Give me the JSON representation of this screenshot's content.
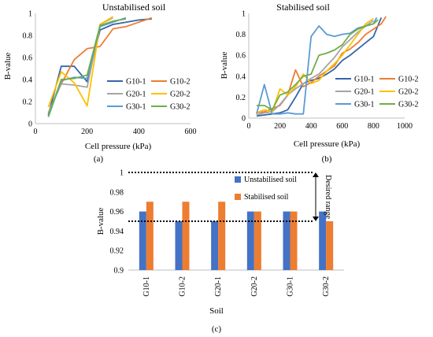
{
  "chart_data": [
    {
      "id": "a",
      "type": "line",
      "title": "Unstabilised soil",
      "xlabel": "Cell pressure (kPa)",
      "ylabel": "B-value",
      "caption": "(a)",
      "xlim": [
        0,
        600
      ],
      "ylim": [
        0,
        1
      ],
      "xticks": [
        "0",
        "200",
        "400",
        "600"
      ],
      "yticks": [
        "0",
        "0.2",
        "0.4",
        "0.6",
        "0.8",
        "1"
      ],
      "legend_position": "bottom-right",
      "grid": false,
      "series": [
        {
          "name": "G10-1",
          "color": "#3565a8",
          "x": [
            50,
            100,
            150,
            200,
            250,
            300,
            350,
            400,
            450
          ],
          "y": [
            0.08,
            0.52,
            0.52,
            0.38,
            0.85,
            0.9,
            0.92,
            0.94,
            0.95
          ]
        },
        {
          "name": "G10-2",
          "color": "#ed7d31",
          "x": [
            50,
            100,
            150,
            200,
            250,
            300,
            350,
            400,
            450
          ],
          "y": [
            0.1,
            0.36,
            0.58,
            0.68,
            0.7,
            0.86,
            0.88,
            0.92,
            0.96
          ]
        },
        {
          "name": "G20-1",
          "color": "#a5a5a5",
          "x": [
            50,
            100,
            150,
            200,
            250,
            300
          ],
          "y": [
            0.1,
            0.36,
            0.35,
            0.33,
            0.9,
            0.96
          ]
        },
        {
          "name": "G20-2",
          "color": "#ffc000",
          "x": [
            50,
            100,
            150,
            200,
            250,
            300
          ],
          "y": [
            0.15,
            0.47,
            0.37,
            0.16,
            0.9,
            0.97
          ]
        },
        {
          "name": "G30-1",
          "color": "#5b9bd5",
          "x": [
            50,
            100,
            150,
            200,
            250,
            300,
            350
          ],
          "y": [
            0.06,
            0.39,
            0.42,
            0.41,
            0.88,
            0.92,
            0.96
          ]
        },
        {
          "name": "G30-2",
          "color": "#70ad47",
          "x": [
            50,
            100,
            150,
            200,
            250,
            300,
            350
          ],
          "y": [
            0.07,
            0.4,
            0.41,
            0.44,
            0.89,
            0.93,
            0.95
          ]
        }
      ]
    },
    {
      "id": "b",
      "type": "line",
      "title": "Stabilised soil",
      "xlabel": "Cell pressure (kPa)",
      "ylabel": "B-value",
      "caption": "(b)",
      "xlim": [
        0,
        1000
      ],
      "ylim": [
        0,
        1
      ],
      "xticks": [
        "0",
        "200",
        "400",
        "600",
        "800",
        "1000"
      ],
      "yticks": [
        "0",
        "0.2",
        "0.4",
        "0.6",
        "0.8",
        "1"
      ],
      "legend_position": "bottom-right",
      "grid": false,
      "series": [
        {
          "name": "G10-1",
          "color": "#3565a8",
          "x": [
            50,
            100,
            150,
            200,
            250,
            300,
            350,
            400,
            450,
            500,
            550,
            600,
            650,
            700,
            750,
            800,
            850
          ],
          "y": [
            0.02,
            0.03,
            0.04,
            0.05,
            0.08,
            0.2,
            0.33,
            0.36,
            0.38,
            0.42,
            0.47,
            0.55,
            0.6,
            0.66,
            0.72,
            0.78,
            0.96
          ]
        },
        {
          "name": "G10-2",
          "color": "#ed7d31",
          "x": [
            50,
            100,
            150,
            200,
            250,
            300,
            350,
            400,
            450,
            500,
            550,
            600,
            650,
            700,
            750,
            800,
            850,
            880
          ],
          "y": [
            0.05,
            0.06,
            0.09,
            0.12,
            0.22,
            0.46,
            0.3,
            0.34,
            0.4,
            0.45,
            0.5,
            0.62,
            0.66,
            0.72,
            0.8,
            0.85,
            0.9,
            0.97
          ]
        },
        {
          "name": "G20-1",
          "color": "#a5a5a5",
          "x": [
            50,
            100,
            150,
            200,
            250,
            300,
            350,
            400,
            450,
            500,
            550,
            600,
            650,
            700,
            750,
            800
          ],
          "y": [
            0.03,
            0.05,
            0.06,
            0.13,
            0.22,
            0.28,
            0.33,
            0.38,
            0.42,
            0.5,
            0.58,
            0.68,
            0.75,
            0.82,
            0.88,
            0.93
          ]
        },
        {
          "name": "G20-2",
          "color": "#ffc000",
          "x": [
            50,
            100,
            150,
            200,
            250,
            300,
            350,
            400,
            450,
            500,
            550,
            600,
            650,
            700,
            750,
            800
          ],
          "y": [
            0.05,
            0.08,
            0.06,
            0.28,
            0.22,
            0.3,
            0.42,
            0.33,
            0.36,
            0.45,
            0.52,
            0.6,
            0.7,
            0.8,
            0.9,
            0.95
          ]
        },
        {
          "name": "G30-1",
          "color": "#5b9bd5",
          "x": [
            50,
            100,
            150,
            200,
            250,
            300,
            350,
            400,
            450,
            500,
            550,
            600,
            650,
            700,
            750,
            800,
            820
          ],
          "y": [
            0.04,
            0.32,
            0.04,
            0.04,
            0.05,
            0.04,
            0.04,
            0.78,
            0.88,
            0.8,
            0.78,
            0.8,
            0.81,
            0.86,
            0.88,
            0.9,
            0.96
          ]
        },
        {
          "name": "G30-2",
          "color": "#70ad47",
          "x": [
            50,
            100,
            150,
            200,
            250,
            300,
            350,
            400,
            450,
            500,
            550,
            600,
            650,
            700,
            750,
            800,
            830
          ],
          "y": [
            0.12,
            0.12,
            0.08,
            0.22,
            0.25,
            0.32,
            0.4,
            0.42,
            0.6,
            0.62,
            0.65,
            0.7,
            0.8,
            0.85,
            0.88,
            0.9,
            0.94
          ]
        }
      ]
    },
    {
      "id": "c",
      "type": "bar",
      "title": "",
      "xlabel": "Soil",
      "ylabel": "B-value",
      "caption": "(c)",
      "ylim": [
        0.9,
        1
      ],
      "yticks": [
        "0.9",
        "0.92",
        "0.94",
        "0.96",
        "0.98",
        "1"
      ],
      "categories": [
        "G10-1",
        "G10-2",
        "G20-1",
        "G20-2",
        "G30-1",
        "G30-2"
      ],
      "series": [
        {
          "name": "Unstabilised soil",
          "color": "#4472c4",
          "values": [
            0.96,
            0.95,
            0.95,
            0.96,
            0.96,
            0.96
          ]
        },
        {
          "name": "Stabilised soil",
          "color": "#ed7d31",
          "values": [
            0.97,
            0.97,
            0.97,
            0.96,
            0.96,
            0.95
          ]
        }
      ],
      "annotation": {
        "text": "Desired range",
        "range": [
          0.95,
          1
        ]
      },
      "legend_position": "top-right",
      "grid": false
    }
  ]
}
